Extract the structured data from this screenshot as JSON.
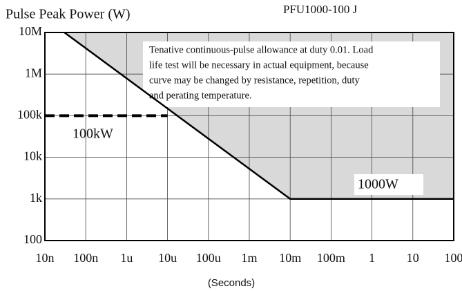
{
  "chart_data": {
    "type": "line",
    "title": "Pulse Peak Power (W)",
    "subtitle": "PFU1000-100 J",
    "x_label": "(Seconds)",
    "log_x": true,
    "log_y": true,
    "grid": true,
    "xlim": [
      1e-08,
      100
    ],
    "ylim": [
      100,
      10000000
    ],
    "xticks": [
      {
        "value": 1e-08,
        "label": "10n"
      },
      {
        "value": 1e-07,
        "label": "100n"
      },
      {
        "value": 1e-06,
        "label": "1u"
      },
      {
        "value": 1e-05,
        "label": "10u"
      },
      {
        "value": 0.0001,
        "label": "100u"
      },
      {
        "value": 0.001,
        "label": "1m"
      },
      {
        "value": 0.01,
        "label": "10m"
      },
      {
        "value": 0.1,
        "label": "100m"
      },
      1,
      10,
      100
    ],
    "yticks": [
      100,
      {
        "value": 1000,
        "label": "1k"
      },
      {
        "value": 10000,
        "label": "10k"
      },
      {
        "value": 100000,
        "label": "100k"
      },
      {
        "value": 1000000,
        "label": "1M"
      },
      {
        "value": 10000000,
        "label": "10M"
      }
    ],
    "series": [
      {
        "x": [
          3e-08,
          0.01,
          100
        ],
        "values": [
          10000000,
          1000,
          1000
        ],
        "color": "#000000"
      },
      {
        "x": [
          1e-08,
          1e-05
        ],
        "values": [
          100000,
          100000
        ],
        "color": "#000000",
        "dashed": true
      }
    ],
    "shade_color": "#d9d9d9",
    "annotation_lines": [
      "Tenative continuous-pulse allowance at duty 0.01. Load",
      "life test will be necessary in actual equipment, because",
      "curve may be changed by resistance, repetition, duty",
      "and perating temperature."
    ],
    "label_100kw": "100kW",
    "label_1000w": "1000W"
  }
}
